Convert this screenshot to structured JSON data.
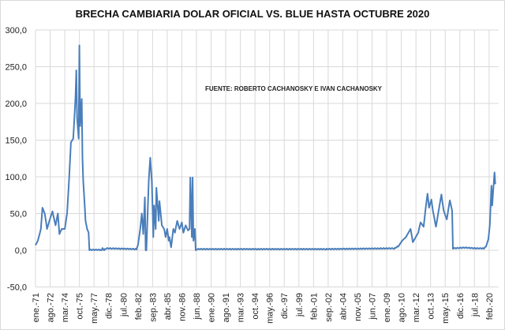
{
  "chart_data": {
    "type": "line",
    "title": "BRECHA CAMBIARIA  DOLAR OFICIAL VS. BLUE HASTA OCTUBRE 2020",
    "annotation": "FUENTE: ROBERTO CACHANOSKY E IVAN CACHANOSKY",
    "xlabel": "",
    "ylabel": "",
    "ylim": [
      -50,
      300
    ],
    "y_ticks": [
      "300,0",
      "250,0",
      "200,0",
      "150,0",
      "100,0",
      "50,0",
      "0,0",
      "-50,0"
    ],
    "y_tick_values": [
      300,
      250,
      200,
      150,
      100,
      50,
      0,
      -50
    ],
    "x_tick_labels": [
      "ene.-71",
      "ago.-72",
      "mar.-74",
      "oct.-75",
      "may.-77",
      "dic.-78",
      "jul.-80",
      "feb.-82",
      "sep.-83",
      "abr.-85",
      "nov.-86",
      "jun.-88",
      "ene.-90",
      "ago.-91",
      "mar.-93",
      "oct.-94",
      "may.-96",
      "dic.-97",
      "jul.-99",
      "feb.-01",
      "sep.-02",
      "abr.-04",
      "nov.-05",
      "jun.-07",
      "ene.-09",
      "ago.-10",
      "mar.-12",
      "oct.-13",
      "may.-15",
      "dic.-16",
      "jul.-18",
      "feb.-20"
    ],
    "x_range": [
      "1971-01",
      "2020-10"
    ],
    "grid": true,
    "legend": "none",
    "line_color": "#4a7ebb",
    "series": [
      {
        "points": [
          [
            "1971-01",
            7
          ],
          [
            "1971-04",
            13
          ],
          [
            "1971-08",
            29
          ],
          [
            "1971-10",
            58
          ],
          [
            "1972-01",
            50
          ],
          [
            "1972-04",
            29
          ],
          [
            "1972-07",
            40
          ],
          [
            "1972-11",
            53
          ],
          [
            "1973-03",
            34
          ],
          [
            "1973-06",
            50
          ],
          [
            "1973-08",
            22
          ],
          [
            "1973-11",
            29
          ],
          [
            "1974-03",
            29
          ],
          [
            "1974-06",
            50
          ],
          [
            "1974-09",
            104
          ],
          [
            "1974-11",
            147
          ],
          [
            "1975-02",
            152
          ],
          [
            "1975-04",
            190
          ],
          [
            "1975-05",
            212
          ],
          [
            "1975-06",
            245
          ],
          [
            "1975-07",
            180
          ],
          [
            "1975-09",
            152
          ],
          [
            "1975-10",
            279
          ],
          [
            "1975-11",
            169
          ],
          [
            "1976-01",
            206
          ],
          [
            "1976-02",
            126
          ],
          [
            "1976-03",
            94
          ],
          [
            "1976-06",
            40
          ],
          [
            "1976-08",
            29
          ],
          [
            "1976-10",
            24
          ],
          [
            "1976-11",
            0
          ],
          [
            "1978-03",
            0
          ],
          [
            "1978-04",
            3
          ],
          [
            "1978-06",
            0
          ],
          [
            "1978-09",
            2
          ],
          [
            "1981-12",
            1
          ],
          [
            "1982-02",
            7
          ],
          [
            "1982-05",
            29
          ],
          [
            "1982-07",
            50
          ],
          [
            "1982-09",
            22
          ],
          [
            "1982-11",
            72
          ],
          [
            "1982-12",
            0
          ],
          [
            "1983-01",
            0
          ],
          [
            "1983-04",
            94
          ],
          [
            "1983-06",
            126
          ],
          [
            "1983-08",
            94
          ],
          [
            "1983-10",
            18
          ],
          [
            "1983-11",
            61
          ],
          [
            "1984-01",
            29
          ],
          [
            "1984-02",
            85
          ],
          [
            "1984-05",
            40
          ],
          [
            "1984-06",
            67
          ],
          [
            "1984-09",
            34
          ],
          [
            "1984-12",
            29
          ],
          [
            "1985-02",
            18
          ],
          [
            "1985-04",
            29
          ],
          [
            "1985-06",
            13
          ],
          [
            "1985-07",
            18
          ],
          [
            "1985-09",
            4
          ],
          [
            "1985-12",
            29
          ],
          [
            "1986-02",
            24
          ],
          [
            "1986-05",
            40
          ],
          [
            "1986-08",
            29
          ],
          [
            "1986-11",
            38
          ],
          [
            "1987-01",
            24
          ],
          [
            "1987-04",
            34
          ],
          [
            "1987-07",
            27
          ],
          [
            "1987-09",
            29
          ],
          [
            "1987-10",
            99
          ],
          [
            "1987-12",
            18
          ],
          [
            "1988-01",
            99
          ],
          [
            "1988-02",
            13
          ],
          [
            "1988-04",
            29
          ],
          [
            "1988-05",
            0
          ],
          [
            "1988-07",
            1
          ],
          [
            "1995-01",
            1
          ],
          [
            "2002-06",
            1
          ],
          [
            "2009-11",
            2
          ],
          [
            "2010-04",
            5
          ],
          [
            "2010-09",
            13
          ],
          [
            "2011-02",
            18
          ],
          [
            "2011-08",
            29
          ],
          [
            "2011-11",
            11
          ],
          [
            "2012-06",
            24
          ],
          [
            "2012-09",
            38
          ],
          [
            "2013-01",
            32
          ],
          [
            "2013-03",
            52
          ],
          [
            "2013-06",
            77
          ],
          [
            "2013-08",
            58
          ],
          [
            "2013-11",
            69
          ],
          [
            "2014-01",
            54
          ],
          [
            "2014-05",
            32
          ],
          [
            "2014-12",
            76
          ],
          [
            "2015-03",
            54
          ],
          [
            "2015-07",
            42
          ],
          [
            "2015-11",
            68
          ],
          [
            "2016-02",
            54
          ],
          [
            "2016-03",
            2
          ],
          [
            "2017-06",
            3
          ],
          [
            "2018-09",
            2
          ],
          [
            "2019-07",
            2
          ],
          [
            "2019-10",
            5
          ],
          [
            "2020-01",
            15
          ],
          [
            "2020-03",
            35
          ],
          [
            "2020-05",
            88
          ],
          [
            "2020-06",
            61
          ],
          [
            "2020-09",
            106
          ],
          [
            "2020-10",
            90
          ]
        ]
      }
    ]
  }
}
